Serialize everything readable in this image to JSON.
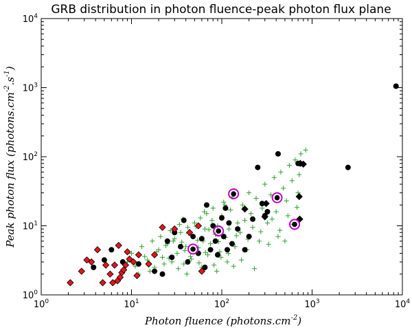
{
  "chart_data": {
    "type": "scatter",
    "title": "GRB distribution in photon fluence-peak photon flux plane",
    "xlabel": "Photon fluence (photons.cm",
    "xlabel_sup": "-2",
    "xlabel_end": ")",
    "ylabel": "Peak photon flux (photons.cm",
    "ylabel_sup1": "-2",
    "ylabel_mid": ".s",
    "ylabel_sup2": "-1",
    "ylabel_end": ")",
    "x_scale": "log",
    "y_scale": "log",
    "xlim": [
      1,
      10000
    ],
    "ylim": [
      1,
      10000
    ],
    "x_ticks": [
      {
        "value": 1,
        "base": "10",
        "exp": "0"
      },
      {
        "value": 10,
        "base": "10",
        "exp": "1"
      },
      {
        "value": 100,
        "base": "10",
        "exp": "2"
      },
      {
        "value": 1000,
        "base": "10",
        "exp": "3"
      },
      {
        "value": 10000,
        "base": "10",
        "exp": "4"
      }
    ],
    "y_ticks": [
      {
        "value": 1,
        "base": "10",
        "exp": "0"
      },
      {
        "value": 10,
        "base": "10",
        "exp": "1"
      },
      {
        "value": 100,
        "base": "10",
        "exp": "2"
      },
      {
        "value": 1000,
        "base": "10",
        "exp": "3"
      },
      {
        "value": 10000,
        "base": "10",
        "exp": "4"
      }
    ],
    "grid": false,
    "colors": {
      "green_plus": "#2ca02c",
      "black_marker": "#000000",
      "red_diamond": "#e8141c",
      "highlight_ring": "#c000c0"
    },
    "series": [
      {
        "marker": "plus",
        "color": "#2ca02c",
        "points": [
          [
            12,
            2.0
          ],
          [
            15,
            3.2
          ],
          [
            18,
            2.5
          ],
          [
            20,
            4.5
          ],
          [
            22,
            3.5
          ],
          [
            25,
            5.5
          ],
          [
            28,
            3.0
          ],
          [
            30,
            6.5
          ],
          [
            32,
            4.0
          ],
          [
            35,
            8.0
          ],
          [
            38,
            2.8
          ],
          [
            40,
            5.0
          ],
          [
            42,
            9.5
          ],
          [
            45,
            3.6
          ],
          [
            48,
            7.0
          ],
          [
            50,
            11.0
          ],
          [
            55,
            4.8
          ],
          [
            58,
            13.0
          ],
          [
            60,
            2.5
          ],
          [
            62,
            6.0
          ],
          [
            65,
            9.0
          ],
          [
            68,
            15.0
          ],
          [
            70,
            3.8
          ],
          [
            75,
            5.5
          ],
          [
            78,
            12.0
          ],
          [
            80,
            18.0
          ],
          [
            85,
            7.5
          ],
          [
            88,
            2.2
          ],
          [
            90,
            10.0
          ],
          [
            95,
            4.2
          ],
          [
            100,
            14.0
          ],
          [
            105,
            22.0
          ],
          [
            110,
            6.8
          ],
          [
            115,
            3.0
          ],
          [
            120,
            9.0
          ],
          [
            125,
            17.0
          ],
          [
            130,
            26.0
          ],
          [
            140,
            5.0
          ],
          [
            150,
            11.0
          ],
          [
            160,
            8.0
          ],
          [
            170,
            20.0
          ],
          [
            180,
            12.0
          ],
          [
            190,
            4.5
          ],
          [
            200,
            30.0
          ],
          [
            210,
            15.0
          ],
          [
            220,
            9.5
          ],
          [
            240,
            25.0
          ],
          [
            260,
            6.0
          ],
          [
            280,
            18.0
          ],
          [
            300,
            40.0
          ],
          [
            320,
            11.0
          ],
          [
            350,
            28.0
          ],
          [
            380,
            50.0
          ],
          [
            400,
            16.0
          ],
          [
            420,
            7.0
          ],
          [
            450,
            60.0
          ],
          [
            480,
            35.0
          ],
          [
            520,
            23.0
          ],
          [
            560,
            75.0
          ],
          [
            600,
            45.0
          ],
          [
            650,
            90.0
          ],
          [
            700,
            30.0
          ],
          [
            750,
            110.0
          ],
          [
            850,
            125.0
          ],
          [
            9,
            3.0
          ],
          [
            10,
            4.0
          ],
          [
            11,
            2.6
          ],
          [
            13,
            5.0
          ],
          [
            14,
            3.6
          ],
          [
            16,
            2.2
          ],
          [
            17,
            6.0
          ],
          [
            19,
            4.2
          ],
          [
            21,
            7.0
          ],
          [
            23,
            2.8
          ],
          [
            24,
            5.2
          ],
          [
            26,
            3.4
          ],
          [
            27,
            8.5
          ],
          [
            29,
            6.0
          ],
          [
            33,
            2.4
          ],
          [
            34,
            10.5
          ],
          [
            36,
            5.8
          ],
          [
            37,
            12.5
          ],
          [
            39,
            4.4
          ],
          [
            41,
            2.0
          ],
          [
            43,
            7.8
          ],
          [
            46,
            3.3
          ],
          [
            52,
            9.8
          ],
          [
            54,
            6.2
          ],
          [
            56,
            2.9
          ],
          [
            64,
            16.0
          ],
          [
            66,
            4.1
          ],
          [
            72,
            8.8
          ],
          [
            82,
            2.7
          ],
          [
            92,
            5.9
          ],
          [
            98,
            3.5
          ],
          [
            108,
            20.0
          ],
          [
            118,
            4.0
          ],
          [
            135,
            2.6
          ],
          [
            145,
            7.2
          ],
          [
            165,
            3.2
          ],
          [
            195,
            6.4
          ],
          [
            230,
            2.4
          ],
          [
            270,
            8.2
          ],
          [
            330,
            5.4
          ],
          [
            360,
            12.5
          ],
          [
            440,
            8.6
          ],
          [
            500,
            6.0
          ],
          [
            540,
            14.0
          ],
          [
            620,
            10.5
          ],
          [
            680,
            18.5
          ],
          [
            720,
            55.0
          ],
          [
            800,
            80.0
          ]
        ]
      },
      {
        "marker": "circle",
        "color": "#000000",
        "points": [
          [
            3.8,
            2.5
          ],
          [
            5.0,
            3.2
          ],
          [
            6.0,
            4.5
          ],
          [
            8.0,
            3.0
          ],
          [
            12,
            2.8
          ],
          [
            18,
            2.2
          ],
          [
            22,
            2.0
          ],
          [
            25,
            6.0
          ],
          [
            28,
            3.5
          ],
          [
            30,
            8.0
          ],
          [
            35,
            5.0
          ],
          [
            38,
            12.0
          ],
          [
            42,
            3.0
          ],
          [
            48,
            7.0
          ],
          [
            55,
            4.0
          ],
          [
            60,
            6.5
          ],
          [
            65,
            2.5
          ],
          [
            68,
            20.0
          ],
          [
            75,
            4.5
          ],
          [
            80,
            10.0
          ],
          [
            85,
            6.0
          ],
          [
            90,
            3.8
          ],
          [
            100,
            13.0
          ],
          [
            105,
            7.0
          ],
          [
            110,
            18.0
          ],
          [
            115,
            4.5
          ],
          [
            120,
            11.0
          ],
          [
            130,
            5.5
          ],
          [
            150,
            9.0
          ],
          [
            180,
            4.5
          ],
          [
            200,
            7.0
          ],
          [
            220,
            12.5
          ],
          [
            250,
            70.0
          ],
          [
            280,
            21.0
          ],
          [
            300,
            14.0
          ],
          [
            320,
            16.0
          ],
          [
            420,
            110.0
          ],
          [
            700,
            80.0
          ],
          [
            2500,
            70.0
          ],
          [
            8500,
            1050.0
          ]
        ]
      },
      {
        "marker": "diamond",
        "color": "#000000",
        "points": [
          [
            180,
            17.5
          ],
          [
            300,
            13.5
          ],
          [
            310,
            21.0
          ],
          [
            720,
            26.5
          ],
          [
            730,
            12.5
          ],
          [
            740,
            80.0
          ],
          [
            800,
            78.0
          ]
        ]
      },
      {
        "marker": "diamond",
        "color": "#e8141c",
        "points": [
          [
            2.1,
            1.5
          ],
          [
            2.8,
            2.2
          ],
          [
            3.2,
            3.2
          ],
          [
            3.6,
            3.0
          ],
          [
            4.2,
            4.5
          ],
          [
            4.8,
            1.5
          ],
          [
            5.2,
            2.7
          ],
          [
            5.8,
            2.0
          ],
          [
            6.2,
            1.5
          ],
          [
            6.5,
            2.7
          ],
          [
            7.0,
            1.6
          ],
          [
            7.2,
            5.2
          ],
          [
            7.5,
            1.8
          ],
          [
            7.8,
            2.1
          ],
          [
            8.2,
            2.3
          ],
          [
            8.6,
            2.7
          ],
          [
            9.0,
            4.2
          ],
          [
            9.5,
            3.3
          ],
          [
            10.5,
            3.0
          ],
          [
            11.5,
            1.9
          ],
          [
            12,
            3.8
          ],
          [
            15.5,
            2.8
          ],
          [
            18,
            3.8
          ],
          [
            22,
            9.5
          ],
          [
            30,
            9.0
          ],
          [
            44,
            8.0
          ],
          [
            55,
            10.0
          ],
          [
            60,
            2.2
          ]
        ]
      },
      {
        "marker": "circle_ring",
        "color": "#c000c0",
        "points": [
          [
            48,
            4.6
          ],
          [
            92,
            8.4
          ],
          [
            135,
            29.0
          ],
          [
            410,
            25.5
          ],
          [
            640,
            10.5
          ]
        ]
      }
    ]
  }
}
